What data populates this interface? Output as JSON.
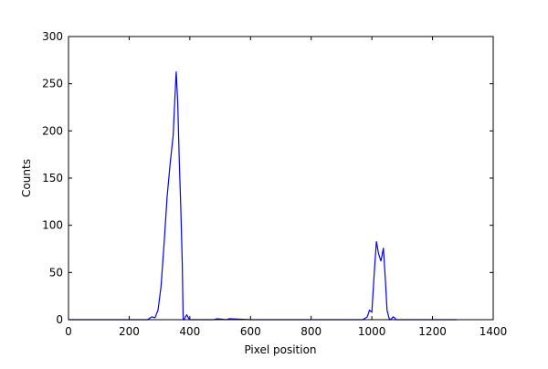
{
  "chart_data": {
    "type": "line",
    "x_label": "Pixel position",
    "y_label": "Counts",
    "x": [
      0,
      200,
      260,
      275,
      285,
      295,
      305,
      315,
      325,
      335,
      345,
      350,
      355,
      360,
      365,
      370,
      375,
      378,
      381,
      385,
      390,
      395,
      400,
      480,
      490,
      520,
      530,
      600,
      970,
      985,
      992,
      1000,
      1008,
      1015,
      1022,
      1030,
      1038,
      1045,
      1050,
      1058,
      1065,
      1070,
      1075,
      1080,
      1280
    ],
    "series": [
      {
        "name": "Counts",
        "color": "#0000ff",
        "values": [
          0,
          0,
          0,
          3,
          2,
          10,
          35,
          80,
          130,
          165,
          195,
          230,
          263,
          230,
          170,
          120,
          60,
          0,
          0,
          3,
          5,
          2,
          0,
          0,
          1,
          0,
          1,
          0,
          0,
          3,
          10,
          8,
          50,
          83,
          70,
          62,
          76,
          40,
          10,
          0,
          1,
          3,
          2,
          0,
          0
        ]
      }
    ],
    "xlim": [
      0,
      1400
    ],
    "ylim": [
      0,
      300
    ],
    "xticks": [
      0,
      200,
      400,
      600,
      800,
      1000,
      1200,
      1400
    ],
    "yticks": [
      0,
      50,
      100,
      150,
      200,
      250,
      300
    ]
  }
}
